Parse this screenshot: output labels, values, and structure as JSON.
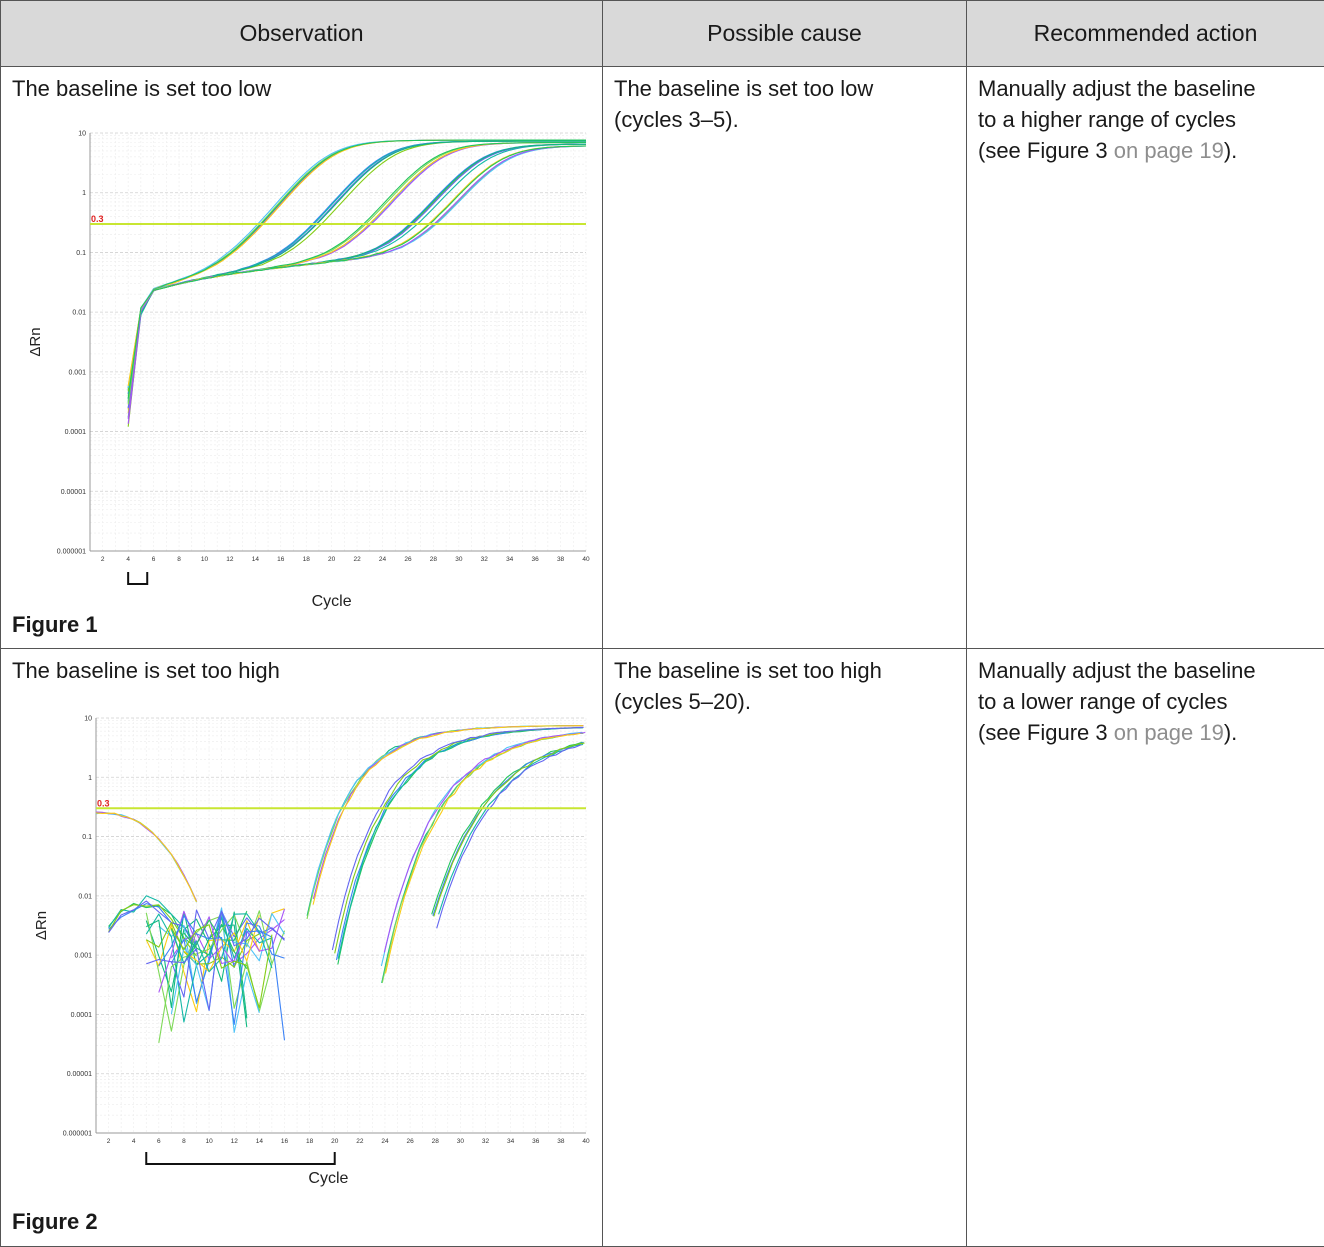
{
  "table": {
    "headers": [
      "Observation",
      "Possible cause",
      "Recommended action"
    ],
    "rows": [
      {
        "observation": "The baseline is set too low",
        "figure_label": "Figure 1",
        "cause_line1": "The baseline is set too low",
        "cause_line2": "(cycles 3–5).",
        "action_line1": "Manually adjust the baseline",
        "action_line2": "to a higher range of cycles",
        "action_pre": "(see Figure 3 ",
        "action_link": "on page 19",
        "action_post": ")."
      },
      {
        "observation": "The baseline is set too high",
        "figure_label": "Figure 2",
        "cause_line1": "The baseline is set too high",
        "cause_line2": "(cycles 5–20).",
        "action_line1": "Manually adjust the baseline",
        "action_line2": "to a lower range of cycles",
        "action_pre": "(see Figure 3 ",
        "action_link": "on page 19",
        "action_post": ")."
      }
    ]
  },
  "colors": {
    "threshold": "#c8e632",
    "threshold_label": "#e02020",
    "header_bg": "#d9d9d9",
    "link": "#8e8e8e",
    "curve_palette": [
      "#7ed957",
      "#4fc3f7",
      "#a855f7",
      "#facc15",
      "#22c55e",
      "#3b82f6",
      "#14b8a6",
      "#84cc16",
      "#6366f1",
      "#10b981"
    ]
  },
  "chart_data": [
    {
      "type": "line",
      "title": "",
      "xlabel": "Cycle",
      "ylabel": "ΔRn",
      "y_scale": "log",
      "xlim": [
        1,
        40
      ],
      "ylim": [
        1e-06,
        10
      ],
      "x_ticks": [
        "2",
        "4",
        "6",
        "8",
        "10",
        "12",
        "14",
        "16",
        "18",
        "20",
        "22",
        "24",
        "26",
        "28",
        "30",
        "32",
        "34",
        "36",
        "38",
        "40"
      ],
      "y_ticks": [
        "0.000001",
        "0.00001",
        "0.0001",
        "0.001",
        "0.01",
        "0.1",
        "1",
        "10"
      ],
      "threshold": 0.3,
      "threshold_label": "0.3",
      "baseline_bracket": [
        4,
        5.5
      ],
      "groups": [
        {
          "ct": 18,
          "plateau": 7.5,
          "count": 5
        },
        {
          "ct": 22.5,
          "plateau": 7.2,
          "count": 5
        },
        {
          "ct": 26.5,
          "plateau": 6.8,
          "count": 5
        },
        {
          "ct": 30,
          "plateau": 6.4,
          "count": 5
        },
        {
          "ct": 31.5,
          "plateau": 6.0,
          "count": 5
        }
      ],
      "early_phase": {
        "start_cycle": 4,
        "start_value": 0.0003,
        "knee_cycle": 5,
        "knee_value": 0.01,
        "flat_value_at_16": 0.075
      }
    },
    {
      "type": "line",
      "title": "",
      "xlabel": "Cycle",
      "ylabel": "ΔRn",
      "y_scale": "log",
      "xlim": [
        1,
        40
      ],
      "ylim": [
        1e-06,
        10
      ],
      "x_ticks": [
        "2",
        "4",
        "6",
        "8",
        "10",
        "12",
        "14",
        "16",
        "18",
        "20",
        "22",
        "24",
        "26",
        "28",
        "30",
        "32",
        "34",
        "36",
        "38",
        "40"
      ],
      "y_ticks": [
        "0.000001",
        "0.00001",
        "0.0001",
        "0.001",
        "0.01",
        "0.1",
        "1",
        "10"
      ],
      "threshold": 0.3,
      "threshold_label": "0.3",
      "baseline_bracket": [
        5,
        20
      ],
      "groups": [
        {
          "start_cycle": 18,
          "start_value": 0.008,
          "plateau": 7.5,
          "count": 5
        },
        {
          "start_cycle": 20,
          "start_value": 0.0007,
          "plateau": 7.2,
          "count": 5
        },
        {
          "start_cycle": 24,
          "start_value": 0.0006,
          "plateau": 6.8,
          "count": 5
        },
        {
          "start_cycle": 28,
          "start_value": 0.003,
          "plateau": 6.3,
          "count": 5
        }
      ],
      "early_decay": {
        "start_cycle": 1,
        "start_value": 0.25,
        "end_cycle": 9,
        "end_value": 0.008
      },
      "noise_region": {
        "x_range": [
          5,
          17
        ],
        "y_range": [
          3e-05,
          0.01
        ],
        "traces": 20
      }
    }
  ]
}
